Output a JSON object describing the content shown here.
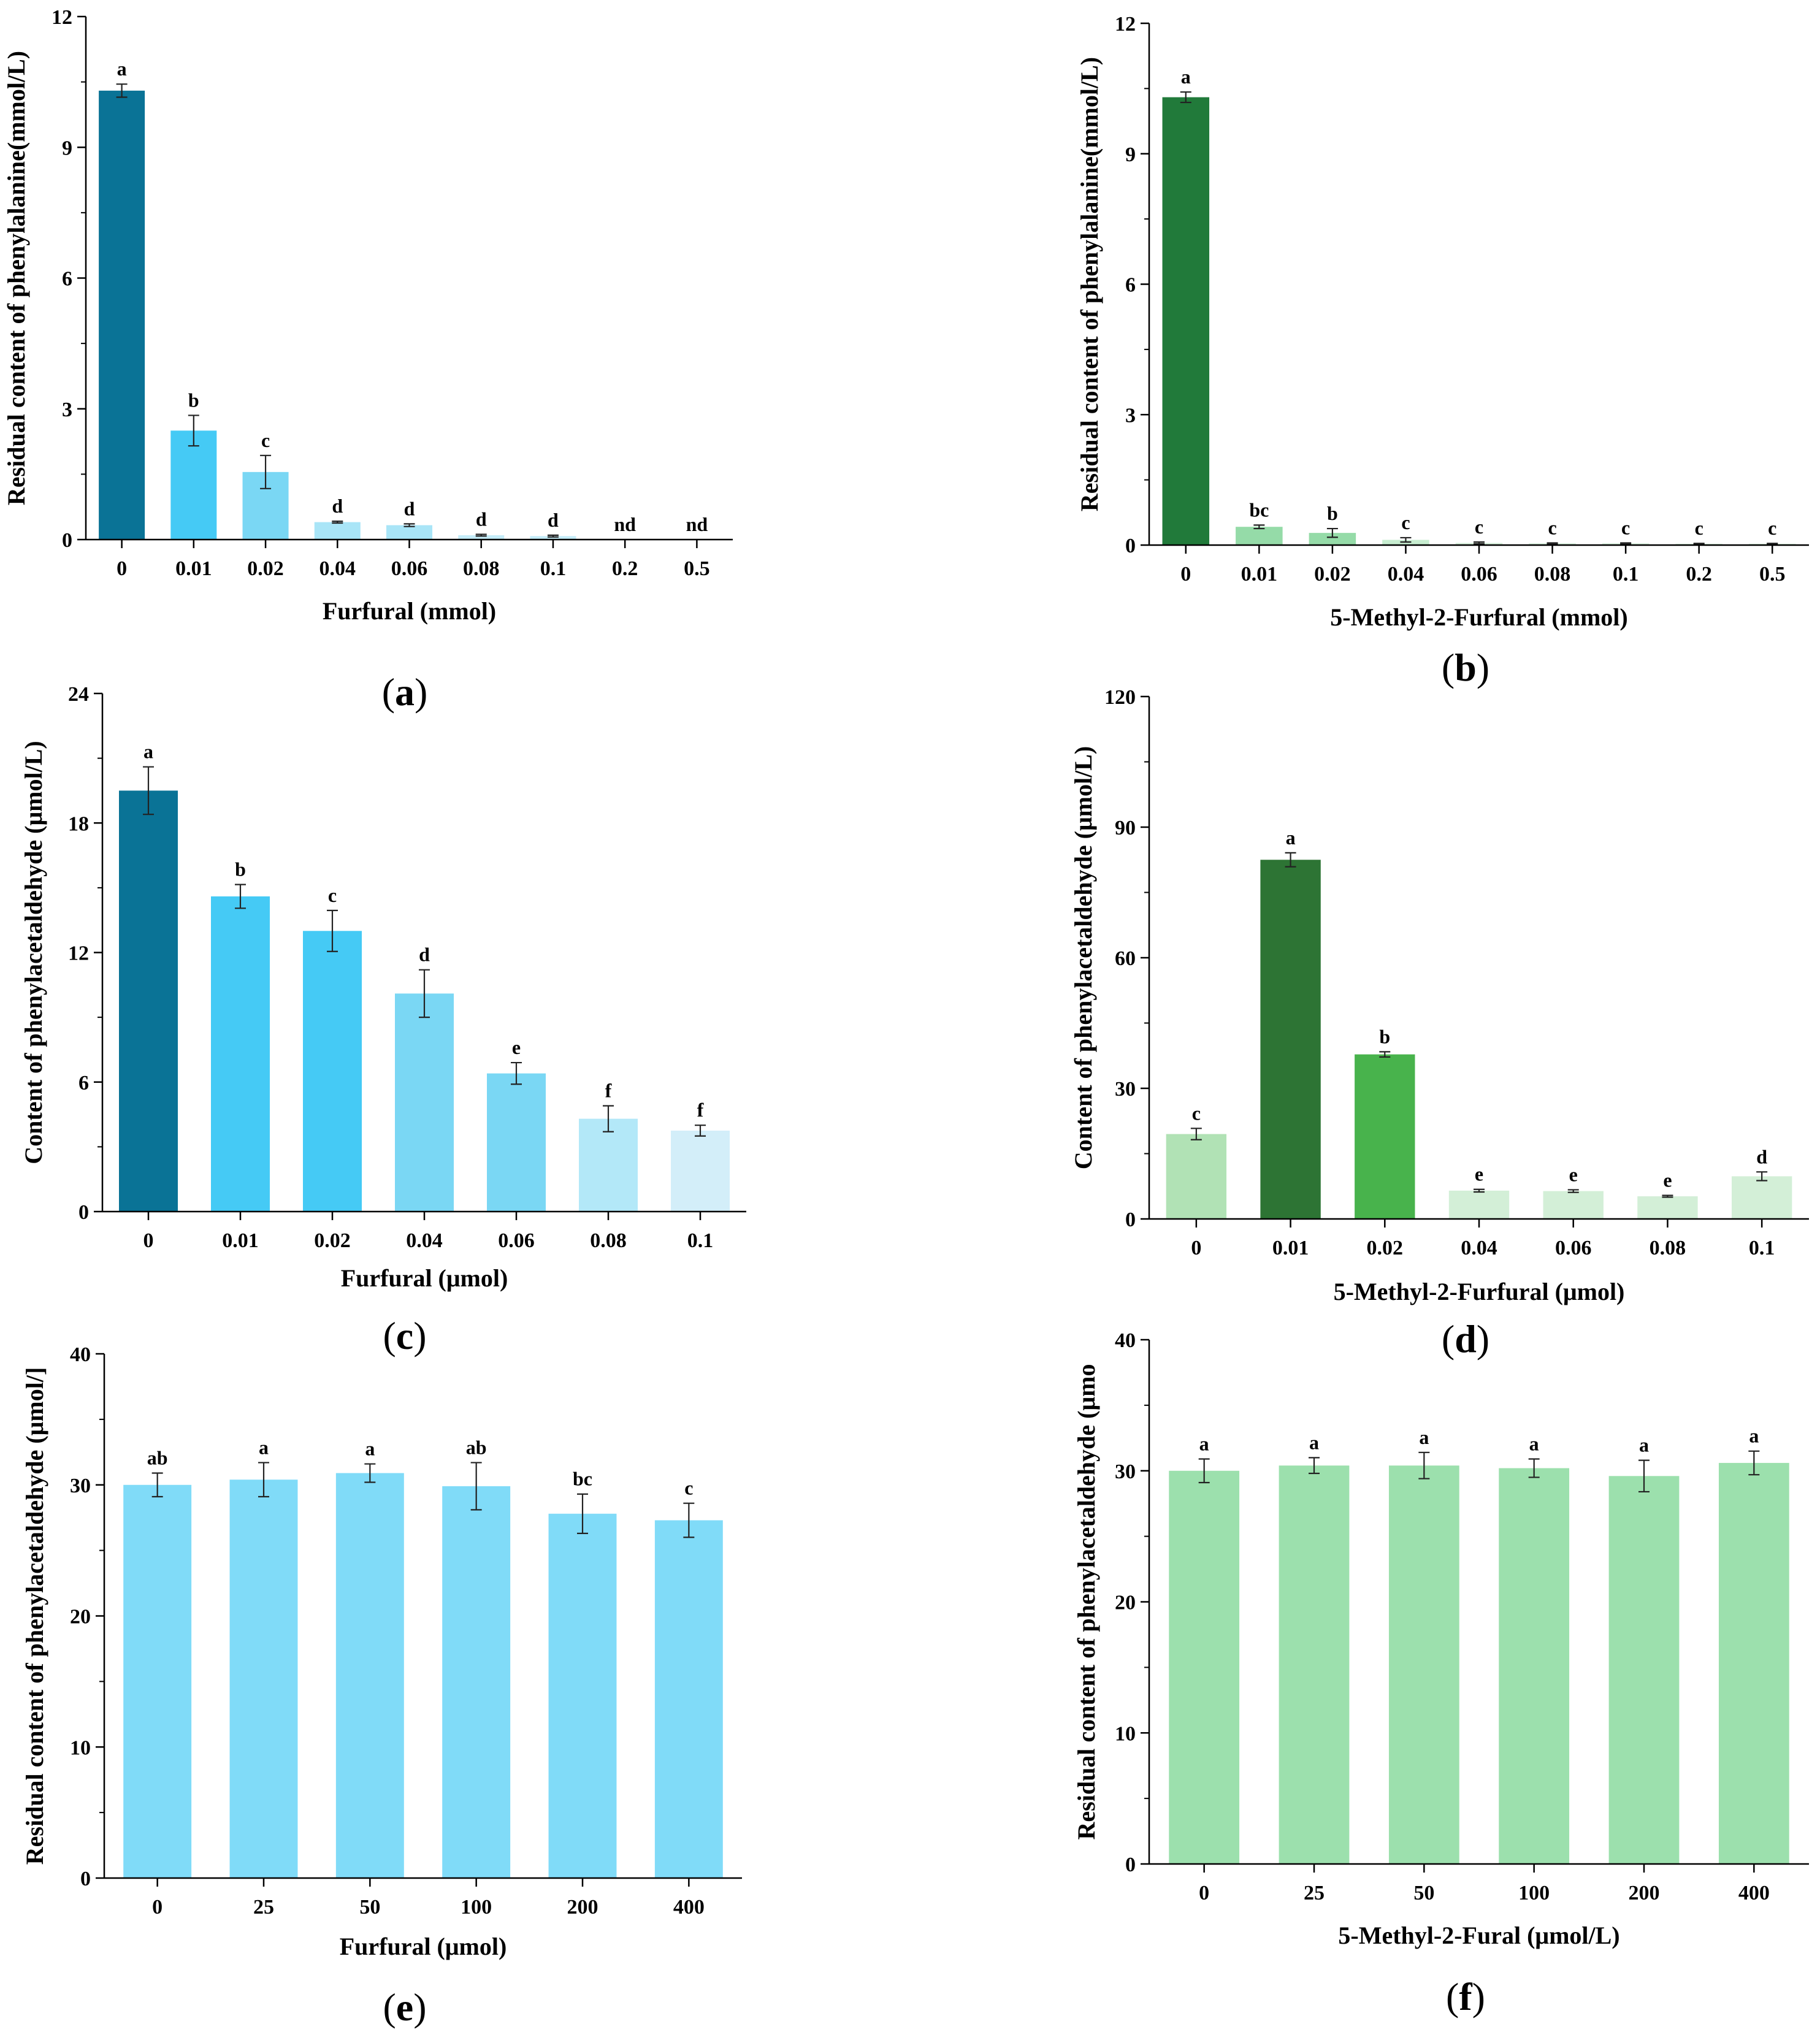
{
  "figure": {
    "description_free": true
  },
  "chart_data": [
    {
      "panel": "(a)",
      "panel_letter": "a",
      "type": "bar",
      "xlabel": "Furfural (mmol)",
      "ylabel": "Residual content of phenylalanine(mmol/L)",
      "ylim": [
        0,
        12
      ],
      "yticks": [
        "0",
        "3",
        "6",
        "9",
        "12"
      ],
      "categories": [
        "0",
        "0.01",
        "0.02",
        "0.04",
        "0.06",
        "0.08",
        "0.1",
        "0.2",
        "0.5"
      ],
      "values": [
        10.3,
        2.5,
        1.55,
        0.4,
        0.33,
        0.1,
        0.08,
        0,
        0
      ],
      "errors": [
        0.15,
        0.35,
        0.38,
        0.02,
        0.03,
        0.02,
        0.02,
        0,
        0
      ],
      "labels": [
        "a",
        "b",
        "c",
        "d",
        "d",
        "d",
        "d",
        "nd",
        "nd"
      ],
      "colors": [
        "#0a7396",
        "#45caf5",
        "#7ad7f4",
        "#a9e5f7",
        "#a9e5f7",
        "#c5edf9",
        "#c5edf9",
        "#c5edf9",
        "#c5edf9"
      ]
    },
    {
      "panel": "(b)",
      "panel_letter": "b",
      "type": "bar",
      "xlabel": "5-Methyl-2-Furfural (mmol)",
      "ylabel": "Residual content of phenylalanine(mmol/L)",
      "ylim": [
        0,
        12
      ],
      "yticks": [
        "0",
        "3",
        "6",
        "9",
        "12"
      ],
      "categories": [
        "0",
        "0.01",
        "0.02",
        "0.04",
        "0.06",
        "0.08",
        "0.1",
        "0.2",
        "0.5"
      ],
      "values": [
        10.3,
        0.42,
        0.28,
        0.12,
        0.05,
        0.04,
        0.04,
        0.03,
        0.03
      ],
      "errors": [
        0.12,
        0.04,
        0.1,
        0.05,
        0.02,
        0.01,
        0.01,
        0.01,
        0.01
      ],
      "labels": [
        "a",
        "bc",
        "b",
        "c",
        "c",
        "c",
        "c",
        "c",
        "c"
      ],
      "colors": [
        "#217a3a",
        "#95dba8",
        "#95dba8",
        "#c7edd0",
        "#d8f2dd",
        "#d8f2dd",
        "#d8f2dd",
        "#d8f2dd",
        "#d8f2dd"
      ]
    },
    {
      "panel": "(c)",
      "panel_letter": "c",
      "type": "bar",
      "xlabel": "Furfural (μmol)",
      "ylabel": "Content of phenylacetaldehyde (μmol/L)",
      "ylim": [
        0,
        24
      ],
      "yticks": [
        "0",
        "6",
        "12",
        "18",
        "24"
      ],
      "categories": [
        "0",
        "0.01",
        "0.02",
        "0.04",
        "0.06",
        "0.08",
        "0.1"
      ],
      "values": [
        19.5,
        14.6,
        13.0,
        10.1,
        6.4,
        4.3,
        3.75
      ],
      "errors": [
        1.1,
        0.55,
        0.95,
        1.1,
        0.5,
        0.6,
        0.25
      ],
      "labels": [
        "a",
        "b",
        "c",
        "d",
        "e",
        "f",
        "f"
      ],
      "colors": [
        "#0a7396",
        "#45caf5",
        "#45caf5",
        "#7ad7f4",
        "#7ad7f4",
        "#b3e8f8",
        "#d3eef9"
      ]
    },
    {
      "panel": "(d)",
      "panel_letter": "d",
      "type": "bar",
      "xlabel": "5-Methyl-2-Furfural (μmol)",
      "ylabel": "Content of phenylacetaldehyde (μmol/L)",
      "ylim": [
        0,
        120
      ],
      "yticks": [
        "0",
        "30",
        "60",
        "90",
        "120"
      ],
      "categories": [
        "0",
        "0.01",
        "0.02",
        "0.04",
        "0.06",
        "0.08",
        "0.1"
      ],
      "values": [
        19.5,
        82.5,
        37.8,
        6.5,
        6.4,
        5.2,
        9.8
      ],
      "errors": [
        1.3,
        1.6,
        0.6,
        0.3,
        0.3,
        0.2,
        1.0
      ],
      "labels": [
        "c",
        "a",
        "b",
        "e",
        "e",
        "e",
        "d"
      ],
      "colors": [
        "#b1e2b5",
        "#2d7434",
        "#48b34c",
        "#d3efd7",
        "#d3efd7",
        "#d3efd7",
        "#d3efd7"
      ]
    },
    {
      "panel": "(e)",
      "panel_letter": "e",
      "type": "bar",
      "xlabel": "Furfural (μmol)",
      "ylabel": "Residual content of phenylacetaldehyde (μmol/]",
      "ylim": [
        0,
        40
      ],
      "yticks": [
        "0",
        "10",
        "20",
        "30",
        "40"
      ],
      "categories": [
        "0",
        "25",
        "50",
        "100",
        "200",
        "400"
      ],
      "values": [
        30.0,
        30.4,
        30.9,
        29.9,
        27.8,
        27.3
      ],
      "errors": [
        0.9,
        1.3,
        0.7,
        1.8,
        1.5,
        1.3
      ],
      "labels": [
        "ab",
        "a",
        "a",
        "ab",
        "bc",
        "c"
      ],
      "colors": [
        "#80dbf8",
        "#80dbf8",
        "#80dbf8",
        "#80dbf8",
        "#80dbf8",
        "#80dbf8"
      ]
    },
    {
      "panel": "(f)",
      "panel_letter": "f",
      "type": "bar",
      "xlabel": "5-Methyl-2-Fural (μmol/L)",
      "ylabel": "Residual content of phenylacetaldehyde (μmo",
      "ylim": [
        0,
        40
      ],
      "yticks": [
        "0",
        "10",
        "20",
        "30",
        "40"
      ],
      "categories": [
        "0",
        "25",
        "50",
        "100",
        "200",
        "400"
      ],
      "values": [
        30.0,
        30.4,
        30.4,
        30.2,
        29.6,
        30.6
      ],
      "errors": [
        0.9,
        0.6,
        1.0,
        0.7,
        1.2,
        0.9
      ],
      "labels": [
        "a",
        "a",
        "a",
        "a",
        "a",
        "a"
      ],
      "colors": [
        "#9ce0ad",
        "#9ce0ad",
        "#9ce0ad",
        "#9ce0ad",
        "#9ce0ad",
        "#9ce0ad"
      ]
    }
  ]
}
